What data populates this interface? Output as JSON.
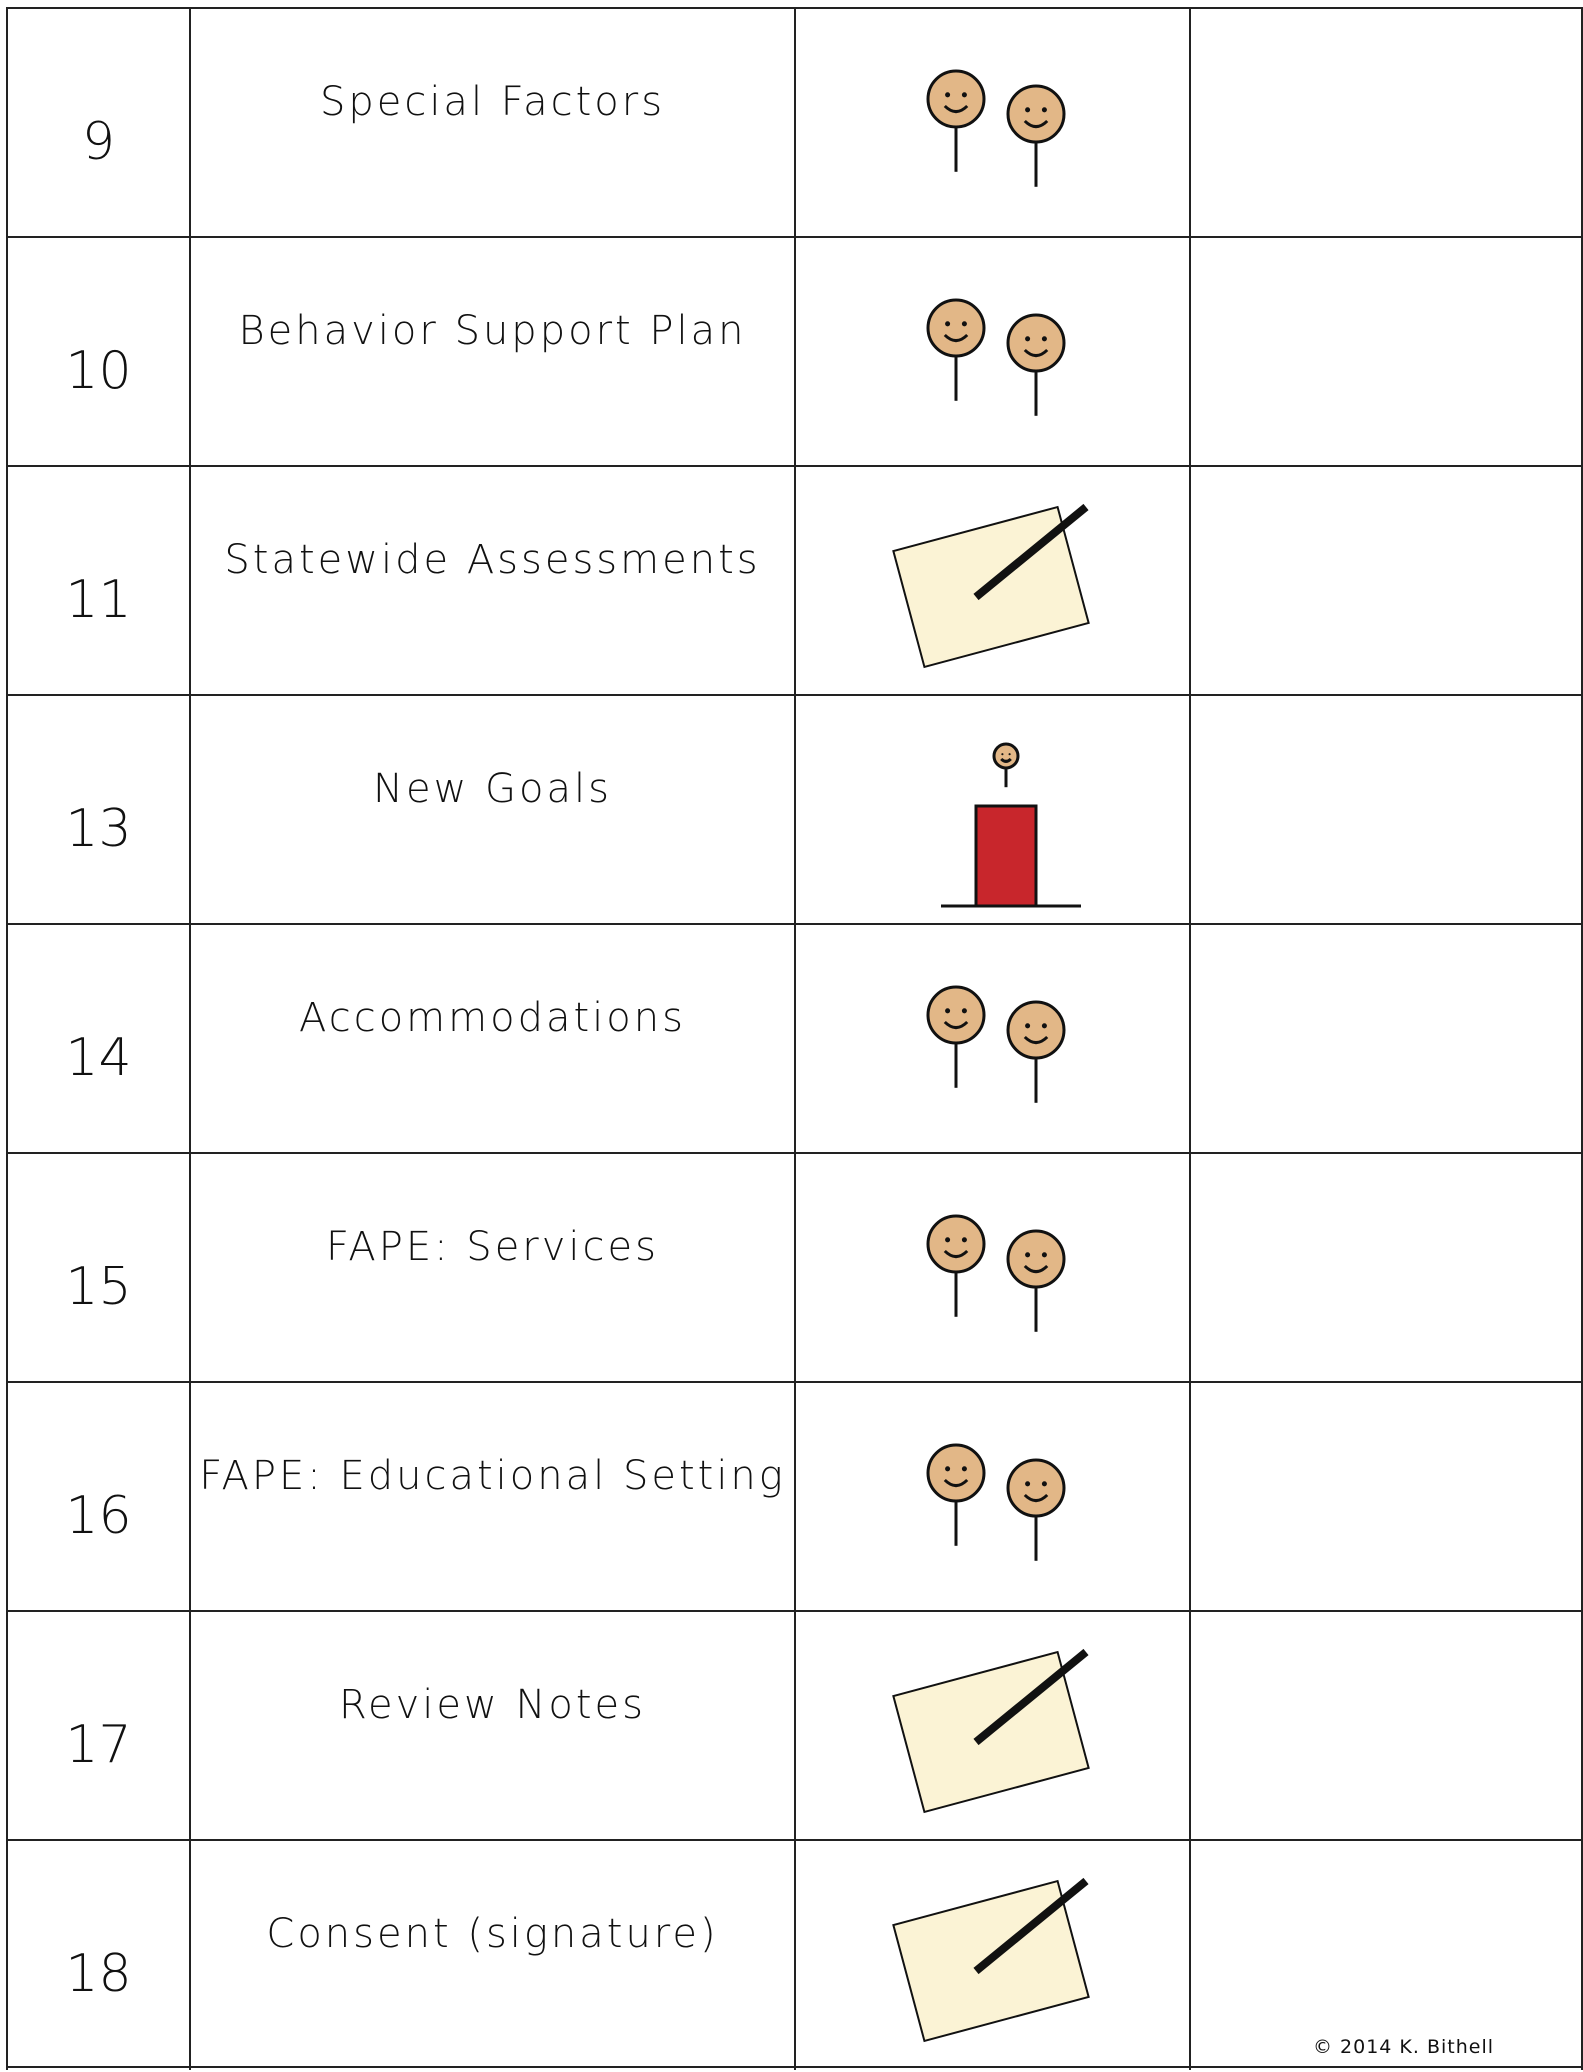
{
  "table": {
    "rows": [
      [
        "9",
        "Special Factors"
      ],
      [
        "10",
        "Behavior Support Plan"
      ],
      [
        "11",
        "Statewide Assessments"
      ],
      [
        "13",
        "New Goals"
      ],
      [
        "14",
        "Accommodations"
      ],
      [
        "15",
        "FAPE: Services"
      ],
      [
        "16",
        "FAPE: Educational Setting"
      ],
      [
        "17",
        "Review Notes"
      ],
      [
        "18",
        "Consent (signature)"
      ]
    ]
  },
  "footer": {
    "copyright": "©  2014 K. Bithell"
  }
}
